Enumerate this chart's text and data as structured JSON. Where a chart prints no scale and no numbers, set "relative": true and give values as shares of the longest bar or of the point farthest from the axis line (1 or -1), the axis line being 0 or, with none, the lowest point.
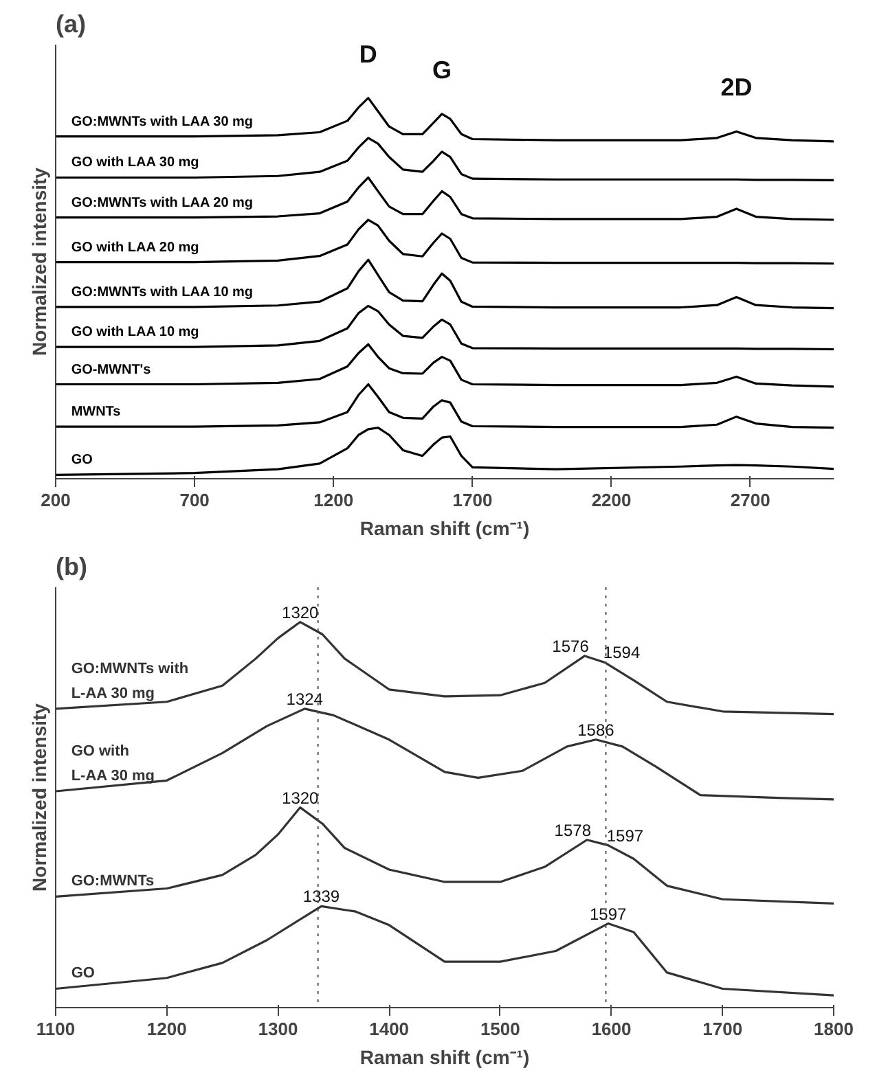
{
  "chart_data": [
    {
      "type": "line",
      "title": "(a)",
      "xlabel": "Raman shift (cm⁻¹)",
      "ylabel": "Normalized intensity",
      "relative": true,
      "legend": false,
      "grid": false,
      "tick_labels": "x",
      "line_style": "solid",
      "marker": "none",
      "x": [
        200,
        700,
        1000,
        1150,
        1250,
        1290,
        1325,
        1360,
        1400,
        1450,
        1520,
        1560,
        1590,
        1620,
        1660,
        1700,
        2000,
        2450,
        2580,
        2650,
        2720,
        2850,
        3000
      ],
      "xlim": [
        200,
        3000
      ],
      "xticks": [
        200,
        700,
        1200,
        1700,
        2200,
        2700
      ],
      "annotations": [
        {
          "text": "D",
          "x": 1325,
          "y": 1.0
        },
        {
          "text": "G",
          "x": 1590,
          "y": 0.958
        },
        {
          "text": "2D",
          "x": 2650,
          "y": 0.912
        }
      ],
      "series": [
        {
          "name": "GO:MWNTs with LAA 30 mg",
          "color": "#000000",
          "values": [
            0.899,
            0.899,
            0.902,
            0.91,
            0.94,
            0.975,
            1.0,
            0.965,
            0.925,
            0.905,
            0.905,
            0.935,
            0.958,
            0.945,
            0.905,
            0.892,
            0.889,
            0.889,
            0.895,
            0.912,
            0.895,
            0.889,
            0.886
          ]
        },
        {
          "name": "GO with LAA 30 mg",
          "color": "#000000",
          "values": [
            0.791,
            0.791,
            0.795,
            0.806,
            0.835,
            0.87,
            0.895,
            0.88,
            0.845,
            0.812,
            0.806,
            0.835,
            0.859,
            0.845,
            0.8,
            0.788,
            0.786,
            0.786,
            0.786,
            0.786,
            0.785,
            0.785,
            0.784
          ]
        },
        {
          "name": "GO:MWNTs with LAA 20 mg",
          "color": "#000000",
          "values": [
            0.686,
            0.686,
            0.689,
            0.697,
            0.728,
            0.765,
            0.791,
            0.755,
            0.715,
            0.695,
            0.695,
            0.73,
            0.755,
            0.74,
            0.695,
            0.684,
            0.682,
            0.682,
            0.688,
            0.709,
            0.688,
            0.682,
            0.68
          ]
        },
        {
          "name": "GO with LAA 20 mg",
          "color": "#000000",
          "values": [
            0.569,
            0.569,
            0.573,
            0.585,
            0.615,
            0.655,
            0.68,
            0.665,
            0.625,
            0.59,
            0.584,
            0.62,
            0.644,
            0.63,
            0.58,
            0.568,
            0.567,
            0.567,
            0.567,
            0.567,
            0.566,
            0.566,
            0.565
          ]
        },
        {
          "name": "GO:MWNTs with LAA 10 mg",
          "color": "#000000",
          "values": [
            0.451,
            0.451,
            0.455,
            0.465,
            0.5,
            0.545,
            0.575,
            0.535,
            0.49,
            0.468,
            0.466,
            0.51,
            0.539,
            0.52,
            0.465,
            0.452,
            0.45,
            0.45,
            0.456,
            0.477,
            0.456,
            0.45,
            0.448
          ]
        },
        {
          "name": "GO with LAA 10 mg",
          "color": "#000000",
          "values": [
            0.346,
            0.346,
            0.35,
            0.362,
            0.395,
            0.435,
            0.454,
            0.44,
            0.405,
            0.375,
            0.37,
            0.4,
            0.418,
            0.405,
            0.355,
            0.343,
            0.342,
            0.342,
            0.342,
            0.342,
            0.341,
            0.341,
            0.34
          ]
        },
        {
          "name": "GO-MWNT's",
          "color": "#000000",
          "values": [
            0.248,
            0.248,
            0.252,
            0.262,
            0.295,
            0.33,
            0.353,
            0.32,
            0.29,
            0.277,
            0.276,
            0.305,
            0.32,
            0.31,
            0.26,
            0.248,
            0.246,
            0.246,
            0.252,
            0.268,
            0.25,
            0.245,
            0.242
          ]
        },
        {
          "name": "MWNTs",
          "color": "#000000",
          "values": [
            0.137,
            0.137,
            0.14,
            0.148,
            0.175,
            0.22,
            0.248,
            0.215,
            0.175,
            0.16,
            0.158,
            0.19,
            0.206,
            0.2,
            0.15,
            0.138,
            0.136,
            0.136,
            0.142,
            0.163,
            0.145,
            0.136,
            0.134
          ]
        },
        {
          "name": "GO",
          "color": "#000000",
          "values": [
            0.01,
            0.015,
            0.025,
            0.04,
            0.08,
            0.115,
            0.13,
            0.134,
            0.115,
            0.075,
            0.06,
            0.09,
            0.108,
            0.111,
            0.06,
            0.03,
            0.025,
            0.032,
            0.035,
            0.036,
            0.035,
            0.032,
            0.026
          ]
        }
      ]
    },
    {
      "type": "line",
      "title": "(b)",
      "xlabel": "Raman shift (cm⁻¹)",
      "ylabel": "Normalized intensity",
      "relative": true,
      "legend": false,
      "grid": false,
      "tick_labels": "x",
      "line_style": "solid",
      "marker": "none",
      "xlim": [
        1100,
        1800
      ],
      "xticks": [
        1100,
        1200,
        1300,
        1400,
        1500,
        1600,
        1700,
        1800
      ],
      "ref_lines": [
        {
          "axis": "x",
          "value": 1336,
          "color": "#555555",
          "line_style": "dotted"
        },
        {
          "axis": "x",
          "value": 1595,
          "color": "#555555",
          "line_style": "dotted"
        }
      ],
      "annotations": [
        {
          "text": "1320",
          "x": 1320,
          "y": 1.0
        },
        {
          "text": "1576",
          "x": 1576,
          "y": 0.912
        },
        {
          "text": "1594",
          "x": 1594,
          "y": 0.895
        },
        {
          "text": "1324",
          "x": 1324,
          "y": 0.775
        },
        {
          "text": "1586",
          "x": 1586,
          "y": 0.695
        },
        {
          "text": "1320",
          "x": 1320,
          "y": 0.519
        },
        {
          "text": "1578",
          "x": 1578,
          "y": 0.435
        },
        {
          "text": "1597",
          "x": 1597,
          "y": 0.421
        },
        {
          "text": "1339",
          "x": 1339,
          "y": 0.263
        },
        {
          "text": "1597",
          "x": 1597,
          "y": 0.218
        }
      ],
      "series": [
        {
          "name": "GO:MWNTs with\nL-AA 30 mg",
          "color": "#333333",
          "x": [
            1100,
            1200,
            1250,
            1280,
            1300,
            1320,
            1340,
            1360,
            1400,
            1450,
            1500,
            1540,
            1576,
            1594,
            1620,
            1650,
            1700,
            1800
          ],
          "values": [
            0.775,
            0.793,
            0.835,
            0.905,
            0.958,
            1.0,
            0.968,
            0.905,
            0.825,
            0.807,
            0.81,
            0.842,
            0.912,
            0.895,
            0.849,
            0.793,
            0.768,
            0.761
          ]
        },
        {
          "name": "GO with\nL-AA 30 mg",
          "color": "#333333",
          "x": [
            1100,
            1200,
            1250,
            1290,
            1324,
            1350,
            1400,
            1450,
            1480,
            1520,
            1560,
            1586,
            1610,
            1640,
            1680,
            1750,
            1800
          ],
          "values": [
            0.561,
            0.589,
            0.66,
            0.73,
            0.775,
            0.758,
            0.695,
            0.611,
            0.596,
            0.614,
            0.677,
            0.695,
            0.677,
            0.625,
            0.551,
            0.544,
            0.54
          ]
        },
        {
          "name": "GO:MWNTs",
          "color": "#333333",
          "x": [
            1100,
            1200,
            1250,
            1280,
            1300,
            1320,
            1340,
            1360,
            1400,
            1450,
            1500,
            1540,
            1578,
            1597,
            1620,
            1650,
            1700,
            1800
          ],
          "values": [
            0.288,
            0.309,
            0.344,
            0.396,
            0.449,
            0.519,
            0.477,
            0.414,
            0.358,
            0.326,
            0.326,
            0.365,
            0.435,
            0.421,
            0.386,
            0.316,
            0.281,
            0.27
          ]
        },
        {
          "name": "GO",
          "color": "#333333",
          "x": [
            1100,
            1200,
            1250,
            1290,
            1339,
            1370,
            1400,
            1450,
            1500,
            1550,
            1597,
            1620,
            1650,
            1700,
            1800
          ],
          "values": [
            0.049,
            0.077,
            0.116,
            0.175,
            0.263,
            0.249,
            0.214,
            0.119,
            0.119,
            0.147,
            0.218,
            0.196,
            0.091,
            0.049,
            0.032
          ]
        }
      ]
    }
  ]
}
